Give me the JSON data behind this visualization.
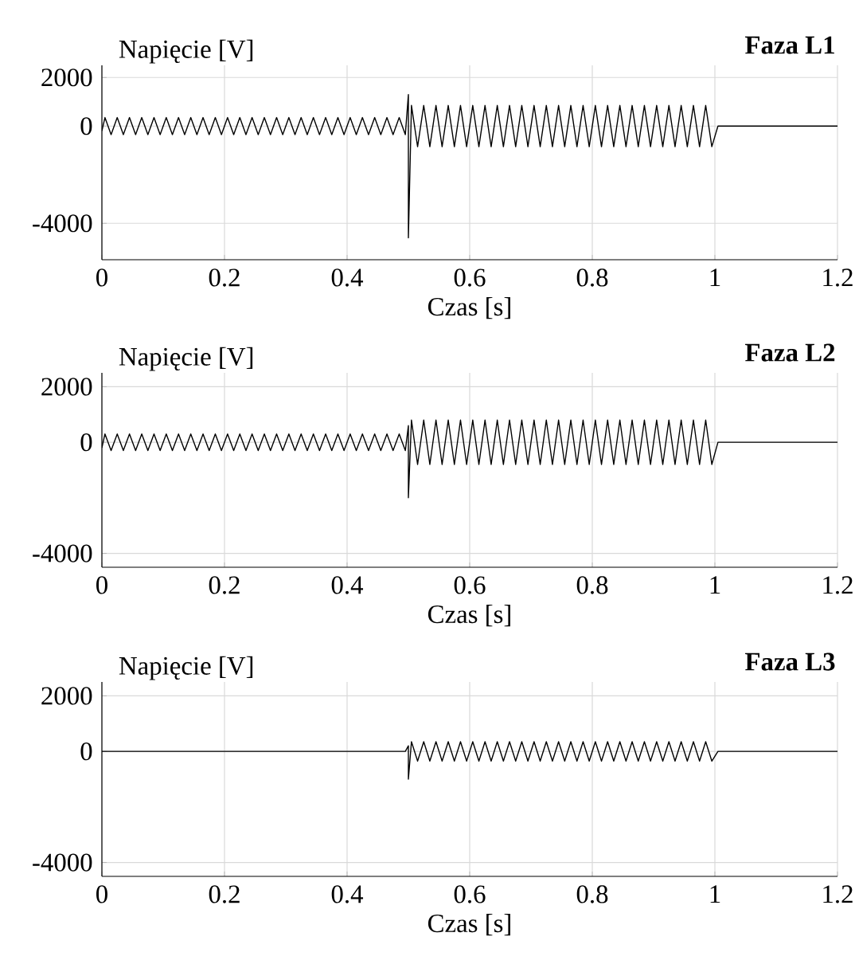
{
  "chart_data": [
    {
      "type": "line",
      "title": "Faza L1",
      "xlabel": "Czas [s]",
      "ylabel": "Napięcie [V]",
      "xlim": [
        0,
        1.2
      ],
      "ylim": [
        -5500,
        2500
      ],
      "xticks": [
        0,
        0.2,
        0.4,
        0.6,
        0.8,
        1,
        1.2
      ],
      "yticks": [
        -4000,
        0,
        2000
      ],
      "grid": true,
      "x": [
        0,
        0.005,
        0.015,
        0.025,
        0.035,
        0.045,
        0.055,
        0.065,
        0.075,
        0.085,
        0.095,
        0.105,
        0.115,
        0.125,
        0.135,
        0.145,
        0.155,
        0.165,
        0.175,
        0.185,
        0.195,
        0.205,
        0.215,
        0.225,
        0.235,
        0.245,
        0.255,
        0.265,
        0.275,
        0.285,
        0.295,
        0.305,
        0.315,
        0.325,
        0.335,
        0.345,
        0.355,
        0.365,
        0.375,
        0.385,
        0.395,
        0.405,
        0.415,
        0.425,
        0.435,
        0.445,
        0.455,
        0.465,
        0.475,
        0.485,
        0.495,
        0.5,
        0.5,
        0.505,
        0.515,
        0.525,
        0.535,
        0.545,
        0.555,
        0.565,
        0.575,
        0.585,
        0.595,
        0.605,
        0.615,
        0.625,
        0.635,
        0.645,
        0.655,
        0.665,
        0.675,
        0.685,
        0.695,
        0.705,
        0.715,
        0.725,
        0.735,
        0.745,
        0.755,
        0.765,
        0.775,
        0.785,
        0.795,
        0.805,
        0.815,
        0.825,
        0.835,
        0.845,
        0.855,
        0.865,
        0.875,
        0.885,
        0.895,
        0.905,
        0.915,
        0.925,
        0.935,
        0.945,
        0.955,
        0.965,
        0.975,
        0.985,
        0.995,
        1.005,
        1.2
      ],
      "series": [
        {
          "color": "#000000",
          "values": [
            -200,
            350,
            -350,
            350,
            -350,
            350,
            -350,
            350,
            -350,
            350,
            -350,
            350,
            -350,
            350,
            -350,
            350,
            -350,
            350,
            -350,
            350,
            -350,
            350,
            -350,
            350,
            -350,
            350,
            -350,
            350,
            -350,
            350,
            -350,
            350,
            -350,
            350,
            -350,
            350,
            -350,
            350,
            -350,
            350,
            -350,
            350,
            -350,
            350,
            -350,
            350,
            -350,
            350,
            -350,
            350,
            -350,
            1300,
            -4600,
            850,
            -850,
            850,
            -850,
            850,
            -850,
            850,
            -850,
            850,
            -850,
            850,
            -850,
            850,
            -850,
            850,
            -850,
            850,
            -850,
            850,
            -850,
            850,
            -850,
            850,
            -850,
            850,
            -850,
            850,
            -850,
            850,
            -850,
            850,
            -850,
            850,
            -850,
            850,
            -850,
            850,
            -850,
            850,
            -850,
            850,
            -850,
            850,
            -850,
            850,
            -850,
            850,
            -850,
            850,
            -850,
            0,
            0
          ]
        }
      ]
    },
    {
      "type": "line",
      "title": "Faza L2",
      "xlabel": "Czas [s]",
      "ylabel": "Napięcie [V]",
      "xlim": [
        0,
        1.2
      ],
      "ylim": [
        -4500,
        2500
      ],
      "xticks": [
        0,
        0.2,
        0.4,
        0.6,
        0.8,
        1,
        1.2
      ],
      "yticks": [
        -4000,
        0,
        2000
      ],
      "grid": true,
      "x": [
        0,
        0.005,
        0.015,
        0.025,
        0.035,
        0.045,
        0.055,
        0.065,
        0.075,
        0.085,
        0.095,
        0.105,
        0.115,
        0.125,
        0.135,
        0.145,
        0.155,
        0.165,
        0.175,
        0.185,
        0.195,
        0.205,
        0.215,
        0.225,
        0.235,
        0.245,
        0.255,
        0.265,
        0.275,
        0.285,
        0.295,
        0.305,
        0.315,
        0.325,
        0.335,
        0.345,
        0.355,
        0.365,
        0.375,
        0.385,
        0.395,
        0.405,
        0.415,
        0.425,
        0.435,
        0.445,
        0.455,
        0.465,
        0.475,
        0.485,
        0.495,
        0.5,
        0.5,
        0.505,
        0.515,
        0.525,
        0.535,
        0.545,
        0.555,
        0.565,
        0.575,
        0.585,
        0.595,
        0.605,
        0.615,
        0.625,
        0.635,
        0.645,
        0.655,
        0.665,
        0.675,
        0.685,
        0.695,
        0.705,
        0.715,
        0.725,
        0.735,
        0.745,
        0.755,
        0.765,
        0.775,
        0.785,
        0.795,
        0.805,
        0.815,
        0.825,
        0.835,
        0.845,
        0.855,
        0.865,
        0.875,
        0.885,
        0.895,
        0.905,
        0.915,
        0.925,
        0.935,
        0.945,
        0.955,
        0.965,
        0.975,
        0.985,
        0.995,
        1.005,
        1.2
      ],
      "series": [
        {
          "color": "#000000",
          "values": [
            -200,
            300,
            -300,
            300,
            -300,
            300,
            -300,
            300,
            -300,
            300,
            -300,
            300,
            -300,
            300,
            -300,
            300,
            -300,
            300,
            -300,
            300,
            -300,
            300,
            -300,
            300,
            -300,
            300,
            -300,
            300,
            -300,
            300,
            -300,
            300,
            -300,
            300,
            -300,
            300,
            -300,
            300,
            -300,
            300,
            -300,
            300,
            -300,
            300,
            -300,
            300,
            -300,
            300,
            -300,
            300,
            -300,
            600,
            -2000,
            800,
            -800,
            800,
            -800,
            800,
            -800,
            800,
            -800,
            800,
            -800,
            800,
            -800,
            800,
            -800,
            800,
            -800,
            800,
            -800,
            800,
            -800,
            800,
            -800,
            800,
            -800,
            800,
            -800,
            800,
            -800,
            800,
            -800,
            800,
            -800,
            800,
            -800,
            800,
            -800,
            800,
            -800,
            800,
            -800,
            800,
            -800,
            800,
            -800,
            800,
            -800,
            800,
            -800,
            800,
            -800,
            0,
            0
          ]
        }
      ]
    },
    {
      "type": "line",
      "title": "Faza L3",
      "xlabel": "Czas [s]",
      "ylabel": "Napięcie [V]",
      "xlim": [
        0,
        1.2
      ],
      "ylim": [
        -4500,
        2500
      ],
      "xticks": [
        0,
        0.2,
        0.4,
        0.6,
        0.8,
        1,
        1.2
      ],
      "yticks": [
        -4000,
        0,
        2000
      ],
      "grid": true,
      "x": [
        0,
        0.495,
        0.5,
        0.5,
        0.505,
        0.515,
        0.525,
        0.535,
        0.545,
        0.555,
        0.565,
        0.575,
        0.585,
        0.595,
        0.605,
        0.615,
        0.625,
        0.635,
        0.645,
        0.655,
        0.665,
        0.675,
        0.685,
        0.695,
        0.705,
        0.715,
        0.725,
        0.735,
        0.745,
        0.755,
        0.765,
        0.775,
        0.785,
        0.795,
        0.805,
        0.815,
        0.825,
        0.835,
        0.845,
        0.855,
        0.865,
        0.875,
        0.885,
        0.895,
        0.905,
        0.915,
        0.925,
        0.935,
        0.945,
        0.955,
        0.965,
        0.975,
        0.985,
        0.995,
        1.005,
        1.2
      ],
      "series": [
        {
          "color": "#000000",
          "values": [
            0,
            0,
            200,
            -1000,
            350,
            -350,
            350,
            -350,
            350,
            -350,
            350,
            -350,
            350,
            -350,
            350,
            -350,
            350,
            -350,
            350,
            -350,
            350,
            -350,
            350,
            -350,
            350,
            -350,
            350,
            -350,
            350,
            -350,
            350,
            -350,
            350,
            -350,
            350,
            -350,
            350,
            -350,
            350,
            -350,
            350,
            -350,
            350,
            -350,
            350,
            -350,
            350,
            -350,
            350,
            -350,
            350,
            -350,
            350,
            -350,
            0,
            0
          ]
        }
      ]
    }
  ]
}
